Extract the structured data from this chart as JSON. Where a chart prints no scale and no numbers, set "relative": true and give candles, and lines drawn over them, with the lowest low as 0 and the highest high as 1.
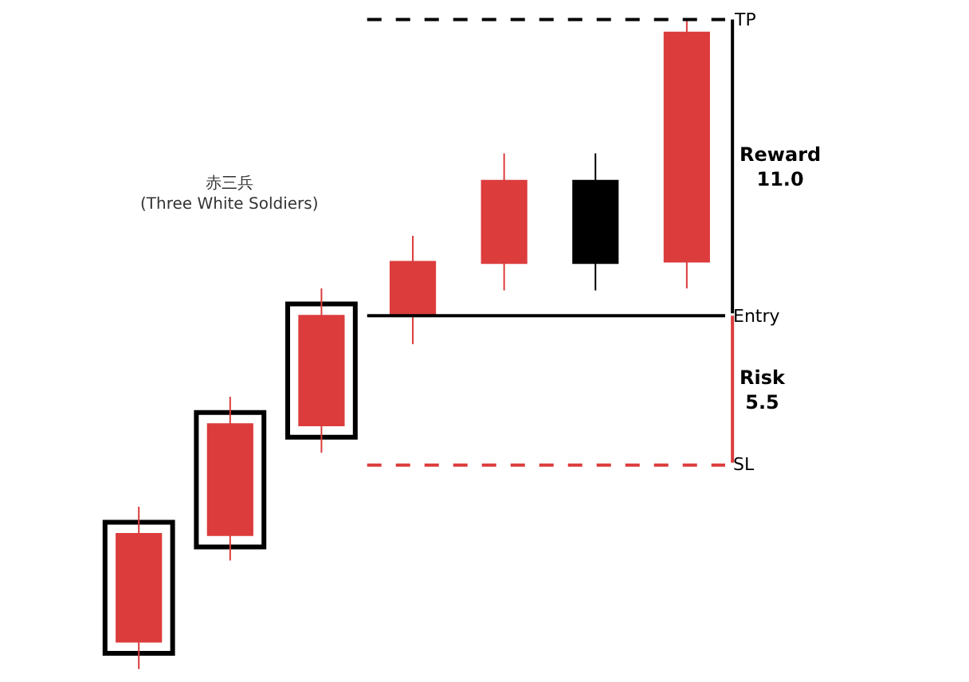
{
  "chart_data": {
    "type": "candlestick",
    "relative": true,
    "categories": [
      null,
      null,
      null,
      null,
      null,
      null,
      null
    ],
    "ohlc": [
      [
        0.042,
        0.25,
        0,
        0.208
      ],
      [
        0.206,
        0.419,
        0.167,
        0.377
      ],
      [
        0.375,
        0.586,
        0.333,
        0.544
      ],
      [
        0.544,
        0.667,
        0.5,
        0.627
      ],
      [
        0.625,
        0.794,
        0.583,
        0.752
      ],
      [
        0.752,
        0.794,
        0.583,
        0.625
      ],
      [
        0.627,
        1,
        0.586,
        0.98
      ]
    ],
    "colors": [
      "#dc3c3c",
      "#dc3c3c",
      "#dc3c3c",
      "#dc3c3c",
      "#dc3c3c",
      "#000000",
      "#dc3c3c"
    ],
    "ref_lines": [
      {
        "axis": "y",
        "value": 1.0,
        "label": "TP",
        "color": "#000000",
        "line_style": "dashed"
      },
      {
        "axis": "y",
        "value": 0.544,
        "label": "Entry",
        "color": "#000000",
        "line_style": "solid"
      },
      {
        "axis": "y",
        "value": 0.314,
        "label": "SL",
        "color": "#dc3c3c",
        "line_style": "dashed"
      }
    ],
    "annotations": [
      "赤三兵\n(Three White Soldiers)",
      "Reward\n11.0",
      "Risk\n5.5"
    ]
  }
}
